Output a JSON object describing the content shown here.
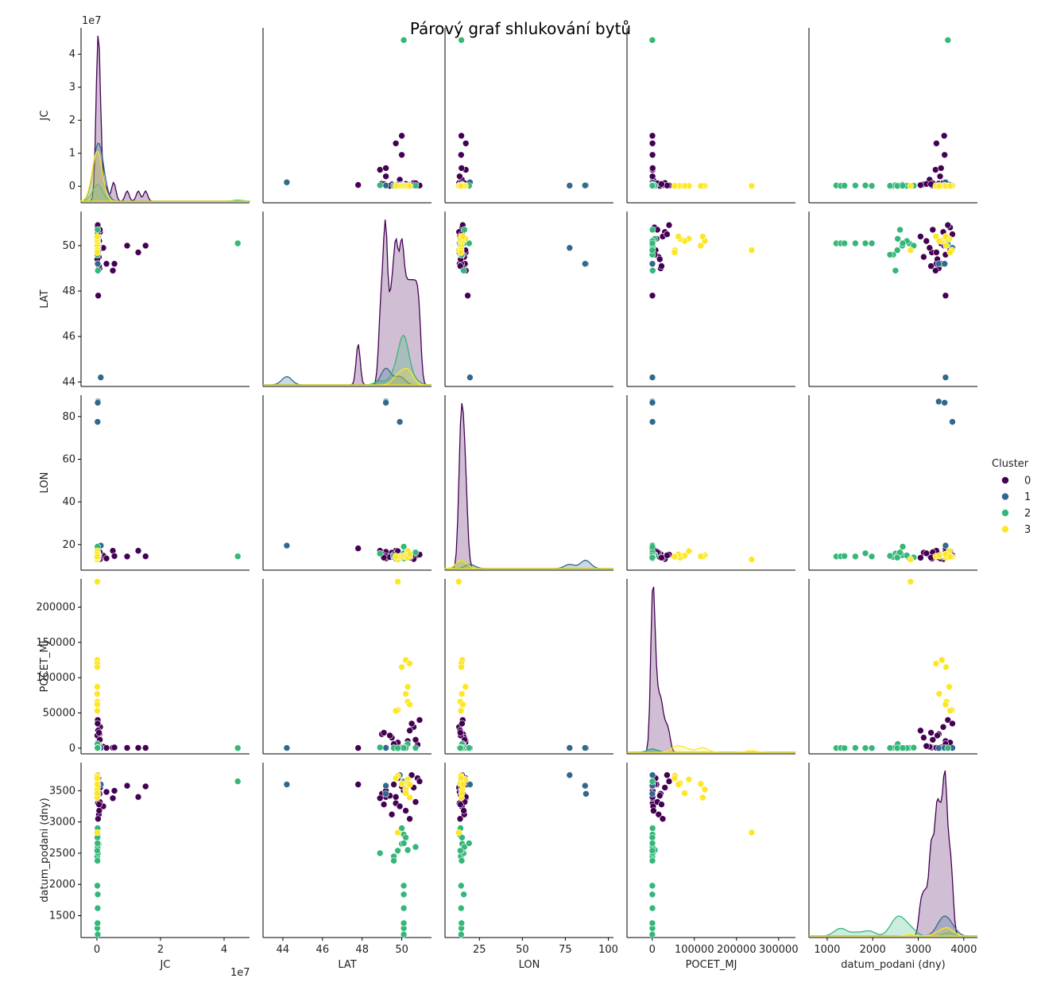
{
  "chart_data": {
    "type": "scatter",
    "subtype": "pairplot",
    "title": "Párový graf shlukování bytů",
    "variables": [
      "JC",
      "LAT",
      "LON",
      "POCET_MJ",
      "datum_podani (dny)"
    ],
    "axis_labels": [
      "JC",
      "LAT",
      "LON",
      "POCET_MJ",
      "datum_podani (dny)"
    ],
    "ranges": [
      [
        -5000000,
        48000000
      ],
      [
        43.8,
        51.5
      ],
      [
        8,
        90
      ],
      [
        -8000,
        240000
      ],
      [
        1150,
        3950
      ]
    ],
    "x_ranges": [
      [
        -5000000,
        48000000
      ],
      [
        43,
        51.5
      ],
      [
        5,
        103
      ],
      [
        -60000,
        340000
      ],
      [
        600,
        4300
      ]
    ],
    "ticks": [
      [
        0,
        10000000,
        20000000,
        30000000,
        40000000
      ],
      [
        44,
        46,
        48,
        50
      ],
      [
        20,
        40,
        60,
        80
      ],
      [
        0,
        50000,
        100000,
        150000,
        200000
      ],
      [
        1500,
        2000,
        2500,
        3000,
        3500
      ]
    ],
    "tick_labels": [
      [
        "0",
        "1",
        "2",
        "3",
        "4"
      ],
      [
        "44",
        "46",
        "48",
        "50"
      ],
      [
        "20",
        "40",
        "60",
        "80"
      ],
      [
        "0",
        "50000",
        "100000",
        "150000",
        "200000"
      ],
      [
        "1500",
        "2000",
        "2500",
        "3000",
        "3500"
      ]
    ],
    "x_ticks": [
      [
        0,
        20000000,
        40000000
      ],
      [
        44,
        46,
        48,
        50
      ],
      [
        25,
        50,
        75,
        100
      ],
      [
        0,
        100000,
        200000,
        300000
      ],
      [
        1000,
        2000,
        3000,
        4000
      ]
    ],
    "x_tick_labels": [
      [
        "0",
        "2",
        "4"
      ],
      [
        "44",
        "46",
        "48",
        "50"
      ],
      [
        "25",
        "50",
        "75",
        "100"
      ],
      [
        "0",
        "100000",
        "200000",
        "300000"
      ],
      [
        "1000",
        "2000",
        "3000",
        "4000"
      ]
    ],
    "y_offset_label": "1e7",
    "x_offset_label": "1e7",
    "legend": {
      "title": "Cluster",
      "entries": [
        "0",
        "1",
        "2",
        "3"
      ],
      "placement": "right"
    },
    "colors": [
      "#440154",
      "#31688e",
      "#35b779",
      "#fde725"
    ],
    "grid": false,
    "clusters": [
      {
        "name": "0",
        "points": [
          [
            100000,
            50.1,
            14.4,
            200,
            3500
          ],
          [
            200000,
            49.2,
            16.6,
            300,
            3400
          ],
          [
            150000,
            50.8,
            15.0,
            5000,
            3700
          ],
          [
            300000,
            49.7,
            13.4,
            1000,
            3300
          ],
          [
            500000,
            50.3,
            17.0,
            10000,
            3600
          ],
          [
            800000,
            49.0,
            15.5,
            20000,
            3450
          ],
          [
            1000000,
            50.6,
            13.2,
            30000,
            3550
          ],
          [
            2000000,
            49.9,
            14.8,
            2000,
            3250
          ],
          [
            3000000,
            49.2,
            13.5,
            500,
            3480
          ],
          [
            5000000,
            48.9,
            17.1,
            800,
            3380
          ],
          [
            5500000,
            49.2,
            14.6,
            1000,
            3500
          ],
          [
            9500000,
            50.0,
            14.4,
            500,
            3580
          ],
          [
            13000000,
            49.7,
            17.1,
            600,
            3400
          ],
          [
            15300000,
            50.0,
            14.5,
            400,
            3570
          ],
          [
            400000,
            47.8,
            18.2,
            300,
            3600
          ],
          [
            250000,
            50.9,
            15.3,
            40000,
            3650
          ],
          [
            600000,
            49.5,
            16.2,
            15000,
            3120
          ],
          [
            350000,
            50.4,
            13.8,
            25000,
            3050
          ],
          [
            450000,
            49.8,
            16.9,
            8000,
            3700
          ],
          [
            700000,
            50.2,
            15.9,
            3000,
            3180
          ],
          [
            120000,
            49.4,
            14.1,
            18000,
            3420
          ],
          [
            900000,
            50.7,
            16.4,
            12000,
            3320
          ],
          [
            180000,
            49.6,
            15.2,
            6000,
            3600
          ],
          [
            220000,
            50.5,
            14.9,
            35000,
            3750
          ],
          [
            650000,
            49.1,
            13.9,
            22000,
            3280
          ]
        ]
      },
      {
        "name": "1",
        "points": [
          [
            1200000,
            44.2,
            19.5,
            300,
            3600
          ],
          [
            200000,
            49.9,
            77.5,
            500,
            3750
          ],
          [
            300000,
            49.2,
            87.0,
            200,
            3450
          ],
          [
            250000,
            49.2,
            86.5,
            400,
            3580
          ]
        ]
      },
      {
        "name": "2",
        "points": [
          [
            44300000,
            50.1,
            14.5,
            200,
            3650
          ],
          [
            500000,
            50.0,
            15.0,
            100,
            2650
          ],
          [
            100000,
            49.6,
            14.2,
            300,
            2450
          ],
          [
            200000,
            50.1,
            13.5,
            500,
            2800
          ],
          [
            300000,
            48.9,
            15.8,
            1000,
            2500
          ],
          [
            150000,
            50.3,
            14.9,
            6000,
            2550
          ],
          [
            250000,
            50.1,
            14.4,
            200,
            1200
          ],
          [
            120000,
            50.1,
            14.5,
            300,
            1300
          ],
          [
            180000,
            50.1,
            14.6,
            100,
            1380
          ],
          [
            220000,
            50.1,
            14.4,
            400,
            1620
          ],
          [
            260000,
            50.1,
            15.9,
            200,
            1840
          ],
          [
            130000,
            50.1,
            14.4,
            200,
            1980
          ],
          [
            160000,
            49.6,
            14.7,
            300,
            2380
          ],
          [
            200000,
            50.7,
            16.3,
            500,
            2600
          ],
          [
            140000,
            50.2,
            14.9,
            200,
            2750
          ],
          [
            190000,
            50.0,
            14.0,
            800,
            2900
          ],
          [
            110000,
            49.8,
            13.9,
            100,
            2540
          ],
          [
            170000,
            50.1,
            19.0,
            300,
            2660
          ]
        ]
      },
      {
        "name": "3",
        "points": [
          [
            100000,
            49.8,
            13.0,
            236000,
            2830
          ],
          [
            100000,
            50.2,
            15.0,
            125000,
            3520
          ],
          [
            100000,
            50.4,
            14.5,
            120000,
            3390
          ],
          [
            100000,
            50.0,
            14.5,
            115000,
            3610
          ],
          [
            100000,
            50.3,
            16.9,
            87000,
            3680
          ],
          [
            100000,
            50.2,
            14.8,
            77000,
            3460
          ],
          [
            100000,
            50.3,
            13.9,
            66000,
            3620
          ],
          [
            100000,
            50.4,
            15.4,
            62000,
            3600
          ],
          [
            100000,
            49.8,
            14.3,
            54000,
            3740
          ],
          [
            100000,
            49.7,
            14.3,
            53000,
            3700
          ]
        ]
      }
    ],
    "density_peaks": [
      [
        1.0,
        0.35,
        0.1,
        0.3
      ],
      [
        1.0,
        0.1,
        0.3,
        0.1
      ],
      [
        1.0,
        0.05,
        0.05,
        0.05
      ],
      [
        1.0,
        0.02,
        0.02,
        0.04
      ],
      [
        1.0,
        0.12,
        0.12,
        0.05
      ]
    ]
  }
}
